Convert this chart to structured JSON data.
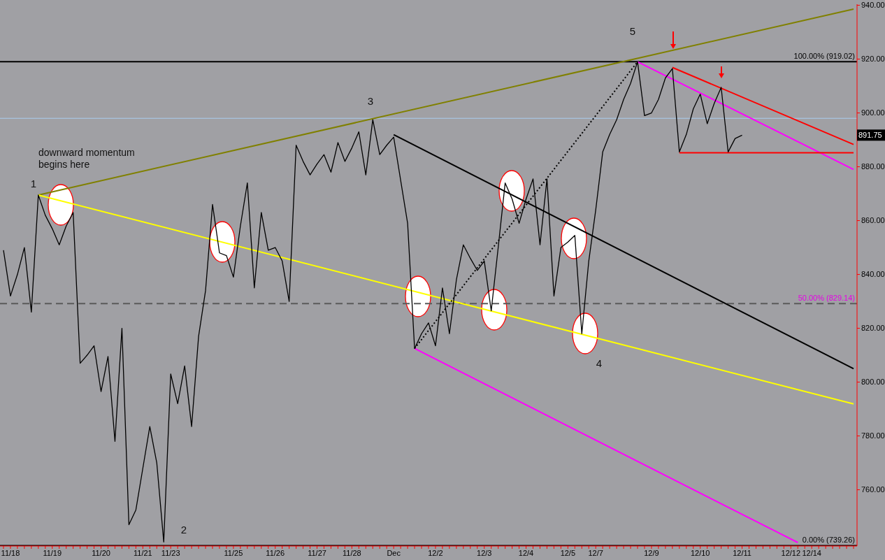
{
  "chart_data": {
    "type": "line",
    "categories": [
      null,
      "11/18",
      null,
      null,
      null,
      null,
      null,
      "11/19",
      null,
      null,
      null,
      null,
      null,
      null,
      "11/20",
      null,
      null,
      null,
      null,
      null,
      "11/21",
      null,
      null,
      null,
      "11/23",
      null,
      null,
      null,
      null,
      null,
      null,
      null,
      null,
      "11/25",
      null,
      null,
      null,
      null,
      null,
      "11/26",
      null,
      null,
      null,
      null,
      null,
      "11/27",
      null,
      null,
      null,
      null,
      "11/28",
      null,
      null,
      null,
      null,
      null,
      "Dec",
      null,
      null,
      null,
      null,
      null,
      "12/2",
      null,
      null,
      null,
      null,
      null,
      null,
      "12/3",
      null,
      null,
      null,
      null,
      null,
      "12/4",
      null,
      null,
      null,
      null,
      null,
      "12/5",
      null,
      null,
      null,
      "12/7",
      null,
      null,
      null,
      null,
      null,
      null,
      null,
      "12/9",
      null,
      null,
      null,
      null,
      null,
      null,
      "12/10",
      null,
      null,
      null,
      null,
      null,
      "12/11",
      null,
      null,
      null,
      null,
      null,
      null,
      "12/12",
      null,
      null,
      "12/14",
      null,
      null,
      null,
      null,
      null,
      null
    ],
    "ylim": [
      739.1,
      940.4
    ],
    "yticks": [
      {
        "value": 760,
        "label": "760.00"
      },
      {
        "value": 780,
        "label": "780.00"
      },
      {
        "value": 800,
        "label": "800.00"
      },
      {
        "value": 820,
        "label": "820.00"
      },
      {
        "value": 840,
        "label": "840.00"
      },
      {
        "value": 860,
        "label": "860.00"
      },
      {
        "value": 880,
        "label": "880.00"
      },
      {
        "value": 900,
        "label": "900.00"
      },
      {
        "value": 920,
        "label": "920.00"
      },
      {
        "value": 940,
        "label": "940.00"
      }
    ],
    "grid": false,
    "legend": false,
    "marker": "none",
    "series": [
      {
        "color": "#000000",
        "values": [
          849,
          832,
          840,
          850,
          826,
          869.5,
          862,
          857,
          851,
          858,
          863,
          807,
          810,
          813.5,
          796.5,
          809.5,
          778,
          820,
          747,
          752.5,
          768,
          783.5,
          770,
          740.6,
          803,
          792,
          806,
          783.5,
          817,
          834,
          866,
          848,
          847,
          839,
          858,
          874,
          835,
          863,
          849,
          850,
          845,
          830,
          888,
          882,
          877,
          881,
          884.5,
          878,
          889,
          882,
          887,
          893,
          877,
          897.5,
          884.5,
          888,
          891,
          875,
          859,
          812.5,
          818,
          822,
          813.5,
          835,
          818,
          838,
          851,
          846,
          841.5,
          845,
          826.5,
          850,
          874,
          868,
          859,
          868,
          875.5,
          851,
          875.5,
          832,
          850,
          852,
          854.5,
          818,
          845,
          864,
          885.5,
          892,
          897.5,
          905,
          911,
          919,
          899,
          900,
          905,
          913,
          916.5,
          885.5,
          892,
          901.5,
          907,
          896,
          903.5,
          909.5,
          885.5,
          890.5,
          891.75,
          null,
          null,
          null,
          null,
          null,
          null,
          null,
          null,
          null,
          null,
          null,
          null,
          null,
          null,
          null,
          null
        ]
      },
      {
        "color": "#808000",
        "values": [
          null,
          null,
          null,
          null,
          null,
          869.5,
          null,
          null,
          null,
          null,
          null,
          null,
          null,
          null,
          null,
          null,
          null,
          null,
          null,
          null,
          null,
          null,
          null,
          null,
          null,
          null,
          null,
          null,
          null,
          null,
          null,
          null,
          null,
          null,
          null,
          null,
          null,
          null,
          null,
          null,
          null,
          null,
          null,
          null,
          null,
          null,
          null,
          null,
          null,
          null,
          null,
          null,
          null,
          null,
          null,
          null,
          null,
          null,
          null,
          null,
          null,
          null,
          null,
          null,
          null,
          null,
          null,
          null,
          null,
          null,
          null,
          null,
          null,
          null,
          null,
          null,
          null,
          null,
          null,
          null,
          null,
          null,
          null,
          null,
          null,
          null,
          null,
          null,
          null,
          null,
          null,
          null,
          null,
          null,
          null,
          null,
          null,
          null,
          null,
          null,
          null,
          null,
          null,
          null,
          null,
          null,
          null,
          null,
          null,
          null,
          null,
          null,
          null,
          null,
          null,
          null,
          null,
          null,
          null,
          null,
          null,
          null,
          938.6
        ]
      },
      {
        "color": "#ffff00",
        "values": [
          null,
          null,
          null,
          null,
          null,
          869.5,
          null,
          null,
          null,
          null,
          null,
          null,
          null,
          null,
          null,
          null,
          null,
          null,
          null,
          null,
          null,
          null,
          null,
          null,
          null,
          null,
          null,
          null,
          null,
          null,
          null,
          null,
          null,
          null,
          null,
          null,
          null,
          null,
          null,
          null,
          null,
          null,
          null,
          null,
          null,
          null,
          null,
          null,
          null,
          null,
          null,
          null,
          null,
          null,
          null,
          null,
          null,
          null,
          null,
          null,
          null,
          null,
          null,
          null,
          null,
          null,
          null,
          null,
          null,
          null,
          null,
          null,
          null,
          null,
          null,
          null,
          null,
          null,
          null,
          null,
          null,
          null,
          null,
          null,
          null,
          null,
          null,
          null,
          null,
          null,
          null,
          null,
          null,
          null,
          null,
          null,
          null,
          null,
          null,
          null,
          null,
          null,
          null,
          null,
          null,
          null,
          null,
          null,
          null,
          null,
          null,
          null,
          null,
          null,
          null,
          null,
          null,
          null,
          null,
          null,
          null,
          null,
          791.9
        ]
      },
      {
        "color": "#000000",
        "values": [
          null,
          null,
          null,
          null,
          null,
          null,
          null,
          null,
          null,
          null,
          null,
          null,
          null,
          null,
          null,
          null,
          null,
          null,
          null,
          null,
          null,
          null,
          null,
          null,
          null,
          null,
          null,
          null,
          null,
          null,
          null,
          null,
          null,
          null,
          null,
          null,
          null,
          null,
          null,
          null,
          null,
          null,
          null,
          null,
          null,
          null,
          null,
          null,
          null,
          null,
          null,
          null,
          null,
          null,
          null,
          null,
          891.9,
          null,
          null,
          null,
          null,
          null,
          null,
          null,
          null,
          null,
          null,
          null,
          null,
          null,
          null,
          null,
          null,
          null,
          null,
          null,
          null,
          null,
          null,
          null,
          null,
          null,
          null,
          null,
          null,
          null,
          null,
          null,
          null,
          null,
          null,
          null,
          null,
          null,
          null,
          null,
          null,
          null,
          null,
          null,
          null,
          null,
          null,
          null,
          null,
          null,
          null,
          null,
          null,
          null,
          null,
          null,
          null,
          null,
          null,
          null,
          null,
          null,
          null,
          null,
          null,
          null,
          805
        ]
      },
      {
        "color": "#ff00ff",
        "values": [
          null,
          null,
          null,
          null,
          null,
          null,
          null,
          null,
          null,
          null,
          null,
          null,
          null,
          null,
          null,
          null,
          null,
          null,
          null,
          null,
          null,
          null,
          null,
          null,
          null,
          null,
          null,
          null,
          null,
          null,
          null,
          null,
          null,
          null,
          null,
          null,
          null,
          null,
          null,
          null,
          null,
          null,
          null,
          null,
          null,
          null,
          null,
          null,
          null,
          null,
          null,
          null,
          null,
          null,
          null,
          null,
          null,
          null,
          null,
          812.5,
          null,
          null,
          null,
          null,
          null,
          null,
          null,
          null,
          null,
          null,
          null,
          null,
          null,
          null,
          null,
          null,
          null,
          null,
          null,
          null,
          null,
          null,
          null,
          null,
          null,
          null,
          null,
          null,
          null,
          null,
          null,
          null,
          null,
          null,
          null,
          null,
          null,
          null,
          null,
          null,
          null,
          null,
          null,
          null,
          null,
          null,
          null,
          null,
          null,
          null,
          null,
          null,
          null,
          null,
          740.4,
          null,
          null,
          null,
          null,
          null,
          null,
          null,
          null
        ]
      },
      {
        "color": "#ff00ff",
        "values": [
          null,
          null,
          null,
          null,
          null,
          null,
          null,
          null,
          null,
          null,
          null,
          null,
          null,
          null,
          null,
          null,
          null,
          null,
          null,
          null,
          null,
          null,
          null,
          null,
          null,
          null,
          null,
          null,
          null,
          null,
          null,
          null,
          null,
          null,
          null,
          null,
          null,
          null,
          null,
          null,
          null,
          null,
          null,
          null,
          null,
          null,
          null,
          null,
          null,
          null,
          null,
          null,
          null,
          null,
          null,
          null,
          null,
          null,
          null,
          null,
          null,
          null,
          null,
          null,
          null,
          null,
          null,
          null,
          null,
          null,
          null,
          null,
          null,
          null,
          null,
          null,
          null,
          null,
          null,
          null,
          null,
          null,
          null,
          null,
          null,
          null,
          null,
          null,
          null,
          null,
          null,
          919,
          null,
          null,
          null,
          null,
          null,
          null,
          null,
          null,
          null,
          null,
          null,
          null,
          null,
          null,
          null,
          null,
          null,
          null,
          null,
          null,
          null,
          null,
          null,
          null,
          null,
          null,
          null,
          null,
          null,
          null,
          879
        ]
      },
      {
        "color": "#ff0000",
        "values": [
          null,
          null,
          null,
          null,
          null,
          null,
          null,
          null,
          null,
          null,
          null,
          null,
          null,
          null,
          null,
          null,
          null,
          null,
          null,
          null,
          null,
          null,
          null,
          null,
          null,
          null,
          null,
          null,
          null,
          null,
          null,
          null,
          null,
          null,
          null,
          null,
          null,
          null,
          null,
          null,
          null,
          null,
          null,
          null,
          null,
          null,
          null,
          null,
          null,
          null,
          null,
          null,
          null,
          null,
          null,
          null,
          null,
          null,
          null,
          null,
          null,
          null,
          null,
          null,
          null,
          null,
          null,
          null,
          null,
          null,
          null,
          null,
          null,
          null,
          null,
          null,
          null,
          null,
          null,
          null,
          null,
          null,
          null,
          null,
          null,
          null,
          null,
          null,
          null,
          null,
          null,
          null,
          null,
          null,
          null,
          null,
          916.9,
          null,
          null,
          null,
          null,
          null,
          null,
          null,
          null,
          null,
          null,
          null,
          null,
          null,
          null,
          null,
          null,
          null,
          null,
          null,
          null,
          null,
          null,
          null,
          null,
          null,
          888.3
        ]
      },
      {
        "color": "#ff0000",
        "values": [
          null,
          null,
          null,
          null,
          null,
          null,
          null,
          null,
          null,
          null,
          null,
          null,
          null,
          null,
          null,
          null,
          null,
          null,
          null,
          null,
          null,
          null,
          null,
          null,
          null,
          null,
          null,
          null,
          null,
          null,
          null,
          null,
          null,
          null,
          null,
          null,
          null,
          null,
          null,
          null,
          null,
          null,
          null,
          null,
          null,
          null,
          null,
          null,
          null,
          null,
          null,
          null,
          null,
          null,
          null,
          null,
          null,
          null,
          null,
          null,
          null,
          null,
          null,
          null,
          null,
          null,
          null,
          null,
          null,
          null,
          null,
          null,
          null,
          null,
          null,
          null,
          null,
          null,
          null,
          null,
          null,
          null,
          null,
          null,
          null,
          null,
          null,
          null,
          null,
          null,
          null,
          null,
          null,
          null,
          null,
          null,
          null,
          885.2,
          null,
          null,
          null,
          null,
          null,
          null,
          null,
          null,
          null,
          null,
          null,
          null,
          null,
          null,
          null,
          null,
          null,
          null,
          null,
          null,
          null,
          null,
          null,
          null,
          885.2
        ]
      },
      {
        "color": "#000000",
        "line_style": "dotted",
        "values": [
          null,
          null,
          null,
          null,
          null,
          null,
          null,
          null,
          null,
          null,
          null,
          null,
          null,
          null,
          null,
          null,
          null,
          null,
          null,
          null,
          null,
          null,
          null,
          null,
          null,
          null,
          null,
          null,
          null,
          null,
          null,
          null,
          null,
          null,
          null,
          null,
          null,
          null,
          null,
          null,
          null,
          null,
          null,
          null,
          null,
          null,
          null,
          null,
          null,
          null,
          null,
          null,
          null,
          null,
          null,
          null,
          null,
          null,
          null,
          812.5,
          null,
          null,
          null,
          null,
          null,
          null,
          null,
          null,
          null,
          null,
          null,
          null,
          null,
          null,
          null,
          null,
          null,
          null,
          null,
          null,
          null,
          null,
          null,
          null,
          null,
          null,
          null,
          null,
          null,
          null,
          null,
          919,
          null,
          null,
          null,
          null,
          null,
          null,
          null,
          null,
          null,
          null,
          null,
          null,
          null,
          null,
          null,
          null,
          null,
          null,
          null,
          null,
          null,
          null,
          null,
          null,
          null,
          null,
          null,
          null,
          null,
          null,
          null
        ]
      }
    ],
    "ref_lines": [
      {
        "axis": "y",
        "value": 898,
        "color": "#aaccee"
      },
      {
        "axis": "y",
        "value": 919.02,
        "label": "100.00% (919.02)",
        "color": "#000000"
      },
      {
        "axis": "y",
        "value": 829.14,
        "label": "50.00% (829.14)",
        "color": "#5a5a5a",
        "line_style": "dashed"
      },
      {
        "axis": "y",
        "value": 739.26,
        "label": "0.00% (739.26)",
        "color": "#000000"
      }
    ],
    "annotations": [
      "downward momentum begins here",
      "1",
      "2",
      "3",
      "4",
      "5",
      {
        "text": "891.75",
        "y": 891.75
      }
    ]
  }
}
